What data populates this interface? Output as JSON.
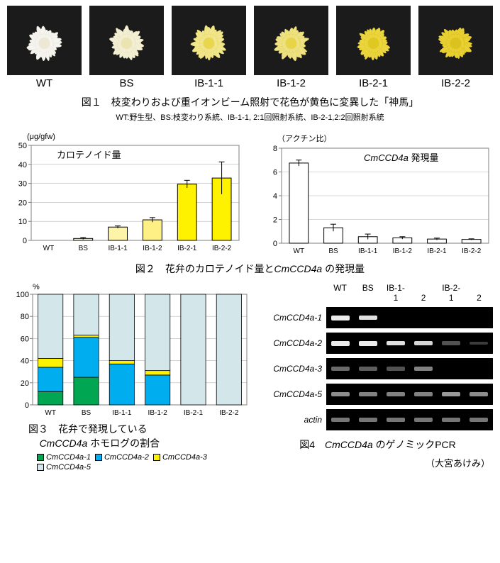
{
  "samples": [
    "WT",
    "BS",
    "IB-1-1",
    "IB-1-2",
    "IB-2-1",
    "IB-2-2"
  ],
  "fig1": {
    "photo_size": {
      "w": 105,
      "h": 98
    },
    "photo_bg": "#1b1b1b",
    "flower_bodies": [
      {
        "fill": "#f5f4ef",
        "stroke": "#e9e7de",
        "core": "#ece8d4"
      },
      {
        "fill": "#f3efd4",
        "stroke": "#eae3c0",
        "core": "#ece3b2"
      },
      {
        "fill": "#f1e68c",
        "stroke": "#e7d868",
        "core": "#e8d74e"
      },
      {
        "fill": "#efe285",
        "stroke": "#e4d356",
        "core": "#e7d448"
      },
      {
        "fill": "#ecd63f",
        "stroke": "#dfc626",
        "core": "#e0c822"
      },
      {
        "fill": "#e9d033",
        "stroke": "#d9bf1d",
        "core": "#dcc21e"
      }
    ],
    "caption": "図１　枝変わりおよび重イオンビーム照射で花色が黄色に変異した「神馬」",
    "subcaption": "WT:野生型、BS:枝変わり系統、IB-1-1, 2:1回照射系統、IB-2-1,2:2回照射系統"
  },
  "fig2": {
    "left": {
      "y_unit": "(μg/gfw)",
      "title": "カロテノイド量",
      "ylim": [
        0,
        50
      ],
      "ytick_step": 10,
      "values": [
        0,
        1.0,
        7.0,
        10.8,
        29.6,
        32.8
      ],
      "err": [
        0,
        0.5,
        0.6,
        1.2,
        2.0,
        8.5
      ],
      "colors": [
        "#ffffff",
        "#fffbe0",
        "#fdf4a8",
        "#fff085",
        "#fff200",
        "#fff200"
      ],
      "bar_border": "#000000",
      "axis_color": "#7f7f7f",
      "grid_color": "#b5b5b5"
    },
    "right": {
      "y_unit": "（アクチン比）",
      "title": "CmCCD4a 発現量",
      "title_italic_part": "CmCCD4a",
      "ylim": [
        0,
        8
      ],
      "ytick_step": 2,
      "values": [
        6.75,
        1.3,
        0.55,
        0.45,
        0.35,
        0.32
      ],
      "err": [
        0.25,
        0.3,
        0.22,
        0.1,
        0.08,
        0.05
      ],
      "color": "#ffffff",
      "bar_border": "#000000",
      "axis_color": "#7f7f7f",
      "grid_color": "#b5b5b5"
    },
    "caption_prefix": "図２　花弁のカロテノイド量と",
    "caption_italic": "CmCCD4a",
    "caption_suffix": " の発現量"
  },
  "fig3": {
    "y_unit": "%",
    "ylim": [
      0,
      100
    ],
    "ytick_step": 20,
    "series": [
      "CmCCD4a-1",
      "CmCCD4a-2",
      "CmCCD4a-3",
      "CmCCD4a-5"
    ],
    "colors": {
      "CmCCD4a-1": "#00a651",
      "CmCCD4a-2": "#00aeef",
      "CmCCD4a-3": "#fff200",
      "CmCCD4a-5": "#d3e6ea"
    },
    "data": {
      "WT": {
        "CmCCD4a-1": 12,
        "CmCCD4a-2": 22,
        "CmCCD4a-3": 8,
        "CmCCD4a-5": 58
      },
      "BS": {
        "CmCCD4a-1": 25,
        "CmCCD4a-2": 36,
        "CmCCD4a-3": 2,
        "CmCCD4a-5": 37
      },
      "IB-1-1": {
        "CmCCD4a-1": 0,
        "CmCCD4a-2": 37,
        "CmCCD4a-3": 3,
        "CmCCD4a-5": 60
      },
      "IB-1-2": {
        "CmCCD4a-1": 0,
        "CmCCD4a-2": 27,
        "CmCCD4a-3": 4,
        "CmCCD4a-5": 69
      },
      "IB-2-1": {
        "CmCCD4a-1": 0,
        "CmCCD4a-2": 0,
        "CmCCD4a-3": 0,
        "CmCCD4a-5": 100
      },
      "IB-2-2": {
        "CmCCD4a-1": 0,
        "CmCCD4a-2": 0,
        "CmCCD4a-3": 0,
        "CmCCD4a-5": 100
      }
    },
    "axis_color": "#7f7f7f",
    "grid_color": "#b5b5b5",
    "caption_line1": "図３　花弁で発現している",
    "caption_line2_italic": "CmCCD4a",
    "caption_line2_suffix": " ホモログの割合"
  },
  "fig4": {
    "lane_header_top": [
      "WT",
      "BS",
      "IB-1-",
      "IB-2-"
    ],
    "lane_header_sub": [
      "",
      "",
      "1",
      "2",
      "1",
      "2"
    ],
    "rows": [
      {
        "name": "CmCCD4a-1",
        "bands": [
          1.0,
          0.95,
          0,
          0,
          0,
          0
        ]
      },
      {
        "name": "CmCCD4a-2",
        "bands": [
          1.0,
          1.0,
          0.95,
          0.9,
          0.35,
          0.25
        ]
      },
      {
        "name": "CmCCD4a-3",
        "bands": [
          0.45,
          0.4,
          0.35,
          0.55,
          0,
          0
        ]
      },
      {
        "name": "CmCCD4a-5",
        "bands": [
          0.6,
          0.55,
          0.55,
          0.55,
          0.65,
          0.6
        ]
      },
      {
        "name": "actin",
        "bands": [
          0.5,
          0.5,
          0.5,
          0.5,
          0.5,
          0.5
        ]
      }
    ],
    "band_color": "#e9e9e9",
    "strip_color": "#000000",
    "caption_prefix": "図4　",
    "caption_italic": "CmCCD4a",
    "caption_suffix": " のゲノミックPCR"
  },
  "credit": "（大宮あけみ）"
}
